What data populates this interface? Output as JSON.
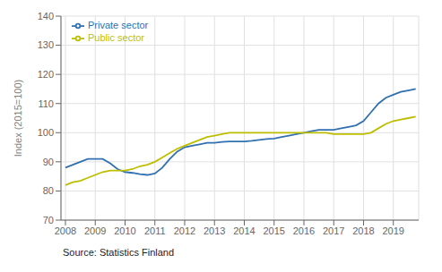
{
  "chart_data": {
    "type": "line",
    "ylabel": "Index (2015=100)",
    "annotations": [
      "Source: Statistics Finland"
    ],
    "x": [
      2008,
      2008.25,
      2008.5,
      2008.75,
      2009,
      2009.25,
      2009.5,
      2009.75,
      2010,
      2010.25,
      2010.5,
      2010.75,
      2011,
      2011.25,
      2011.5,
      2011.75,
      2012,
      2012.25,
      2012.5,
      2012.75,
      2013,
      2013.25,
      2013.5,
      2013.75,
      2014,
      2014.25,
      2014.5,
      2014.75,
      2015,
      2015.25,
      2015.5,
      2015.75,
      2016,
      2016.25,
      2016.5,
      2016.75,
      2017,
      2017.25,
      2017.5,
      2017.75,
      2018,
      2018.25,
      2018.5,
      2018.75,
      2019,
      2019.25,
      2019.5,
      2019.75
    ],
    "series": [
      {
        "name": "Private sector",
        "color": "#3070B0",
        "values": [
          88.0,
          89.0,
          90.0,
          91.0,
          91.0,
          91.0,
          89.5,
          87.5,
          86.5,
          86.2,
          85.8,
          85.5,
          86.0,
          88.0,
          91.0,
          93.5,
          95.0,
          95.5,
          96.0,
          96.5,
          96.5,
          96.8,
          97.0,
          97.0,
          97.0,
          97.2,
          97.5,
          97.8,
          98.0,
          98.5,
          99.0,
          99.5,
          100.0,
          100.5,
          101.0,
          101.0,
          101.0,
          101.5,
          102.0,
          102.5,
          104.0,
          107.0,
          110.0,
          112.0,
          113.0,
          114.0,
          114.5,
          115.0
        ]
      },
      {
        "name": "Public sector",
        "color": "#BEBE00",
        "values": [
          82.0,
          83.0,
          83.5,
          84.5,
          85.5,
          86.5,
          87.0,
          87.0,
          87.0,
          87.5,
          88.5,
          89.0,
          90.0,
          91.5,
          93.0,
          94.5,
          95.5,
          96.5,
          97.5,
          98.5,
          99.0,
          99.5,
          100.0,
          100.0,
          100.0,
          100.0,
          100.0,
          100.0,
          100.0,
          100.0,
          100.0,
          100.0,
          100.0,
          100.0,
          100.0,
          100.0,
          99.5,
          99.5,
          99.5,
          99.5,
          99.5,
          100.0,
          101.5,
          103.0,
          104.0,
          104.5,
          105.0,
          105.5
        ]
      }
    ],
    "xlim": [
      2007.85,
      2019.85
    ],
    "xticks": [
      2008,
      2009,
      2010,
      2011,
      2012,
      2013,
      2014,
      2015,
      2016,
      2017,
      2018,
      2019
    ],
    "ylim": [
      70,
      140
    ],
    "yticks": [
      70,
      80,
      90,
      100,
      110,
      120,
      130,
      140
    ],
    "grid": true,
    "legend": "upper left"
  }
}
